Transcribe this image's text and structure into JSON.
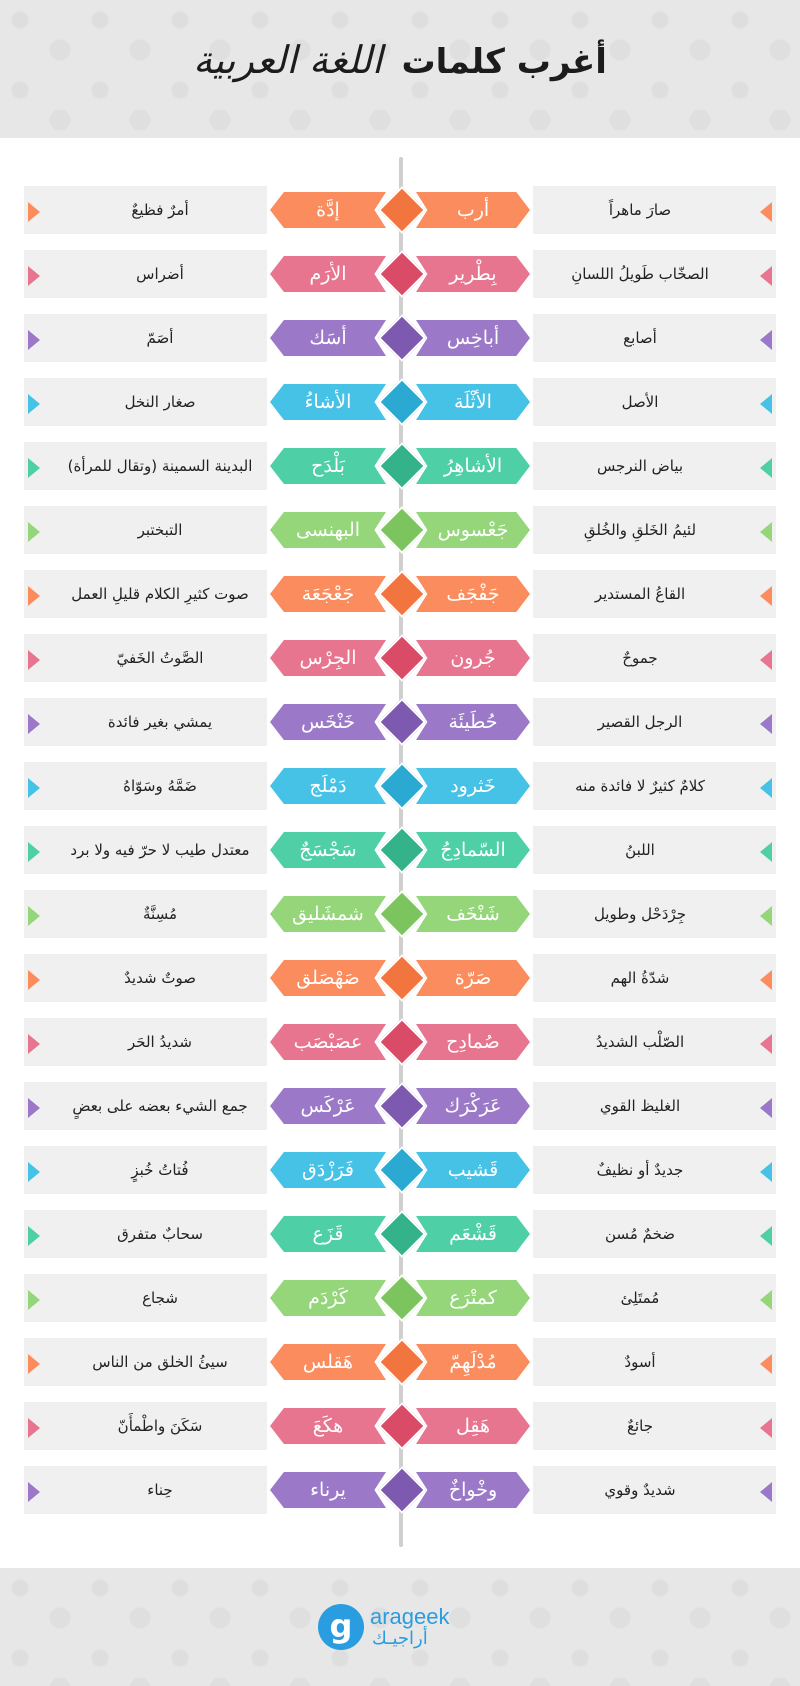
{
  "title": {
    "line1": "أغرب كلمات",
    "line2": "اللغة العربية"
  },
  "palette": {
    "orange": "#fa8c5e",
    "pink": "#e8758f",
    "purple": "#9b79c8",
    "blue": "#45c2e6",
    "teal": "#4fcfa6",
    "green": "#95d67a"
  },
  "rows": [
    {
      "rw": "أرب",
      "rm": "صارَ ماهراً",
      "lw": "إدَّة",
      "lm": "أمرٌ فظيعٌ",
      "color": "#fa8c5e",
      "dcolor": "#f2743e"
    },
    {
      "rw": "بِطْرير",
      "rm": "الصخّاب طَويلُ اللسانِ",
      "lw": "الأرَم",
      "lm": "أضراس",
      "color": "#e8758f",
      "dcolor": "#d94b66"
    },
    {
      "rw": "أباخِس",
      "rm": "أصابع",
      "lw": "أسَك",
      "lm": "أصَمّ",
      "color": "#9b79c8",
      "dcolor": "#7e59b0"
    },
    {
      "rw": "الأثْلَة",
      "rm": "الأصل",
      "lw": "الأشاءُ",
      "lm": "صغار النخل",
      "color": "#45c2e6",
      "dcolor": "#2aaad3"
    },
    {
      "rw": "الأشاهِرُ",
      "rm": "بياض النرجس",
      "lw": "بَلْدَح",
      "lm": "البدينة السمينة (وتقال للمرأة)",
      "color": "#4fcfa6",
      "dcolor": "#34b38b"
    },
    {
      "rw": "جَعْسوس",
      "rm": "لئيمُ الخَلقِ والخُلقِ",
      "lw": "البهنسى",
      "lm": "التبختبر",
      "color": "#95d67a",
      "dcolor": "#7cc45e"
    },
    {
      "rw": "جَفْجَف",
      "rm": "القاعُ المستدير",
      "lw": "جَعْجَعَة",
      "lm": "صوت كثيرِ الكلام قليلِ العمل",
      "color": "#fa8c5e",
      "dcolor": "#f2743e"
    },
    {
      "rw": "جُرون",
      "rm": "جموحٌ",
      "lw": "الجِرْس",
      "lm": "الصَّوتُ الخَفيّ",
      "color": "#e8758f",
      "dcolor": "#d94b66"
    },
    {
      "rw": "حُطَيئَة",
      "rm": "الرجل القصير",
      "lw": "خَنْخَس",
      "lm": "يمشي بغير فائدة",
      "color": "#9b79c8",
      "dcolor": "#7e59b0"
    },
    {
      "rw": "خَثرود",
      "rm": "كلامٌ كثيرٌ لا فائدة منه",
      "lw": "دَمْلَج",
      "lm": "ضَمَّهُ وسَوّاهُ",
      "color": "#45c2e6",
      "dcolor": "#2aaad3"
    },
    {
      "rw": "السّمادِجُ",
      "rm": "اللبنُ",
      "lw": "سَجْسَجٌ",
      "lm": "معتدل طيب لا حرّ فيه ولا برد",
      "color": "#4fcfa6",
      "dcolor": "#34b38b"
    },
    {
      "rw": "شَنْخَف",
      "rm": "جِرْدَحْل وطويل",
      "lw": "شمشَليق",
      "lm": "مُسِنَّةٌ",
      "color": "#95d67a",
      "dcolor": "#7cc45e"
    },
    {
      "rw": "صَرّة",
      "rm": "شدّةُ الهم",
      "lw": "صَهْصَلق",
      "lm": "صوتٌ شديدٌ",
      "color": "#fa8c5e",
      "dcolor": "#f2743e"
    },
    {
      "rw": "صُمادِح",
      "rm": "الصّلْب الشديدُ",
      "lw": "عصَبْصَب",
      "lm": "شديدُ الحَر",
      "color": "#e8758f",
      "dcolor": "#d94b66"
    },
    {
      "rw": "عَرَكْرَك",
      "rm": "الغليظ القوي",
      "lw": "عَرْكَس",
      "lm": "جمع الشيء بعضه على بعضٍ",
      "color": "#9b79c8",
      "dcolor": "#7e59b0"
    },
    {
      "rw": "قَشيب",
      "rm": "جديدٌ أو نظيفٌ",
      "lw": "فَرَزْدَق",
      "lm": "فُتاتُ خُبزٍ",
      "color": "#45c2e6",
      "dcolor": "#2aaad3"
    },
    {
      "rw": "قَشْعَم",
      "rm": "ضخمٌ مُسن",
      "lw": "قَزَع",
      "lm": "سحابٌ متفرق",
      "color": "#4fcfa6",
      "dcolor": "#34b38b"
    },
    {
      "rw": "كمتْرَع",
      "rm": "مُمتَلِئ",
      "lw": "كَرْدَم",
      "lm": "شجاع",
      "color": "#95d67a",
      "dcolor": "#7cc45e"
    },
    {
      "rw": "مُدْلَهِمّ",
      "rm": "أسودٌ",
      "lw": "هَقلس",
      "lm": "سيئُ الخلق من الناس",
      "color": "#fa8c5e",
      "dcolor": "#f2743e"
    },
    {
      "rw": "هَقِل",
      "rm": "جائعٌ",
      "lw": "هكَعَ",
      "lm": "سَكَنَ واطْمأَنّ",
      "color": "#e8758f",
      "dcolor": "#d94b66"
    },
    {
      "rw": "وخْواخٌ",
      "rm": "شديدٌ وقوي",
      "lw": "يرناء",
      "lm": "حِناء",
      "color": "#9b79c8",
      "dcolor": "#7e59b0"
    }
  ],
  "footer": {
    "logo_letter": "g",
    "brand_en": "arageek",
    "brand_ar": "أراجيـك"
  }
}
